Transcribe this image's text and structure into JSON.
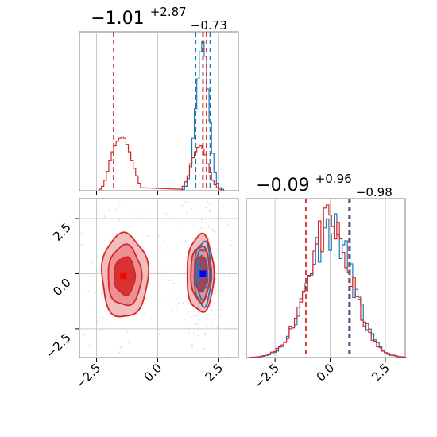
{
  "chart_data": [
    {
      "panel": "marginal-x1",
      "type": "histogram",
      "title": {
        "main": "−1.01",
        "sup": "+2.87",
        "sub": "−0.73"
      },
      "xlim": [
        -3.2,
        3.3
      ],
      "xticks": [
        "−2.5",
        "0.0",
        "2.5"
      ],
      "grid": true,
      "series": [
        {
          "name": "",
          "color": "#1f77b4",
          "bins_x": [
            1.05,
            1.15,
            1.25,
            1.35,
            1.45,
            1.55,
            1.65,
            1.75,
            1.85,
            1.95,
            2.05,
            2.15,
            2.25,
            2.35,
            2.45,
            2.55,
            2.65
          ],
          "density": [
            0.01,
            0.03,
            0.08,
            0.18,
            0.35,
            0.55,
            0.75,
            0.93,
            1.0,
            0.9,
            0.68,
            0.46,
            0.25,
            0.12,
            0.05,
            0.02,
            0.01
          ],
          "quantiles": [
            1.55,
            1.85,
            2.15
          ]
        },
        {
          "name": "",
          "color": "#d62728",
          "bins_x": [
            -2.35,
            -2.25,
            -2.15,
            -2.05,
            -1.95,
            -1.85,
            -1.75,
            -1.65,
            -1.55,
            -1.45,
            -1.35,
            -1.25,
            -1.15,
            -1.05,
            -0.95,
            -0.85,
            -0.75,
            -0.65,
            0.95,
            1.05,
            1.15,
            1.25,
            1.35,
            1.45,
            1.55,
            1.65,
            1.75,
            1.85,
            1.95,
            2.05,
            2.15,
            2.25,
            2.35,
            2.45,
            2.55
          ],
          "density": [
            0.01,
            0.03,
            0.07,
            0.13,
            0.2,
            0.26,
            0.3,
            0.33,
            0.35,
            0.36,
            0.35,
            0.31,
            0.26,
            0.2,
            0.15,
            0.1,
            0.05,
            0.02,
            0.01,
            0.03,
            0.06,
            0.1,
            0.16,
            0.22,
            0.26,
            0.29,
            0.3,
            0.28,
            0.24,
            0.18,
            0.12,
            0.07,
            0.04,
            0.02,
            0.01
          ],
          "quantiles": [
            -1.8,
            1.85,
            2.0
          ]
        }
      ]
    },
    {
      "panel": "joint",
      "type": "contour",
      "xlim": [
        -3.2,
        3.3
      ],
      "ylim": [
        -3.8,
        3.4
      ],
      "xticks": [
        "−2.5",
        "0.0",
        "2.5"
      ],
      "yticks": [
        "−2.5",
        "0.0",
        "2.5"
      ],
      "grid": true,
      "series": [
        {
          "name": "",
          "color": "#1f77b4",
          "blobs": [
            {
              "cx": 1.85,
              "cy": 0.0,
              "sx": 0.35,
              "sy": 1.45
            }
          ],
          "marker": {
            "x": 1.85,
            "y": 0.0
          }
        },
        {
          "name": "",
          "color": "#d62728",
          "blobs": [
            {
              "cx": -1.35,
              "cy": -0.1,
              "sx": 0.95,
              "sy": 1.9
            },
            {
              "cx": 1.75,
              "cy": 0.0,
              "sx": 0.55,
              "sy": 1.75
            }
          ],
          "marker": {
            "x": -1.4,
            "y": -0.1
          }
        }
      ]
    },
    {
      "panel": "marginal-x2",
      "type": "histogram",
      "title": {
        "main": "−0.09",
        "sup": "+0.96",
        "sub": "−0.98"
      },
      "xlim": [
        -3.8,
        3.4
      ],
      "xticks": [
        "−2.5",
        "0.0",
        "2.5"
      ],
      "grid": true,
      "series": [
        {
          "name": "",
          "color": "#1f77b4",
          "mean": 0.0,
          "sigma": 1.0,
          "quantiles": [
            0.85,
            0.9
          ]
        },
        {
          "name": "",
          "color": "#d62728",
          "mean": -0.05,
          "sigma": 1.0,
          "quantiles": [
            -1.1,
            0.88
          ]
        }
      ]
    }
  ]
}
